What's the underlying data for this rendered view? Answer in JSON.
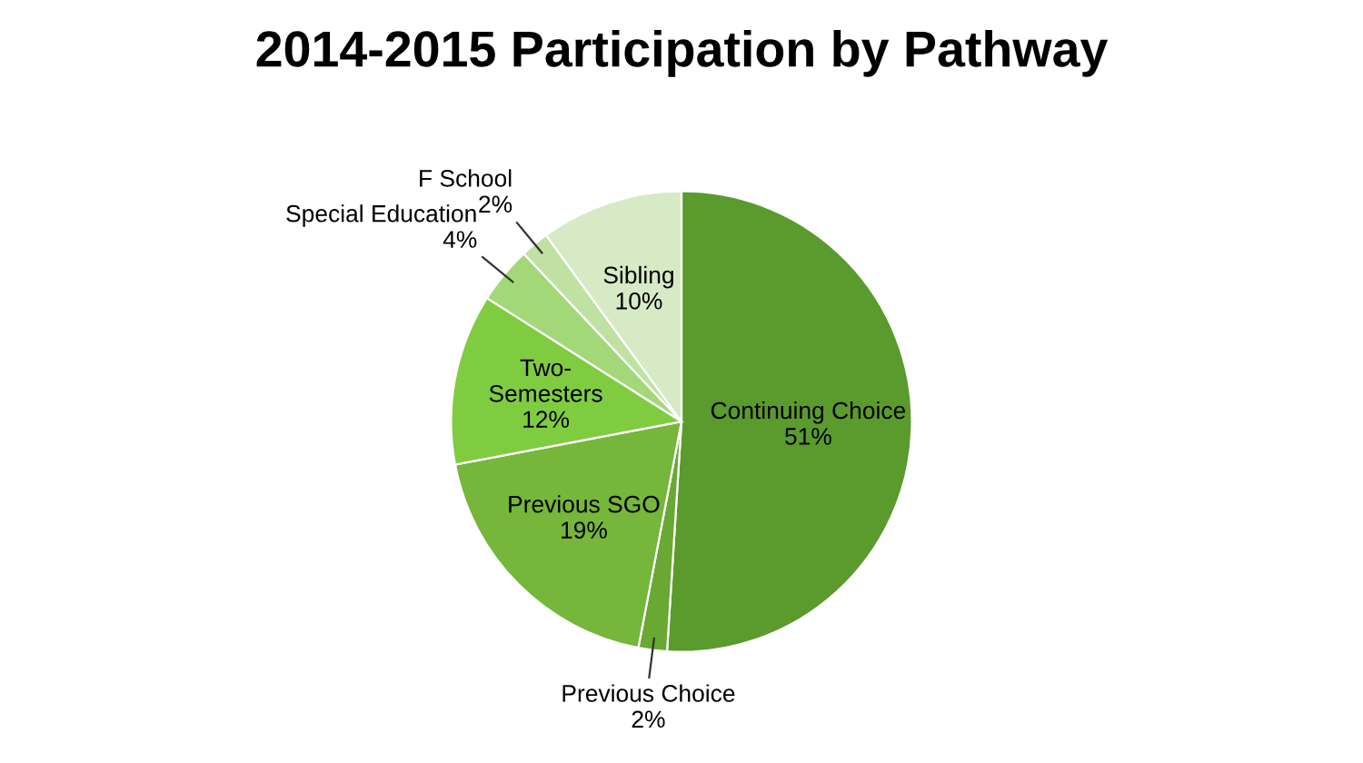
{
  "chart_data": {
    "type": "pie",
    "title": "2014-2015 Participation by Pathway",
    "categories": [
      "Continuing Choice",
      "Previous Choice",
      "Previous SGO",
      "Two-Semesters",
      "Special Education",
      "F School",
      "Sibling"
    ],
    "values": [
      51,
      2,
      19,
      12,
      4,
      2,
      10
    ],
    "value_labels": [
      "51%",
      "2%",
      "19%",
      "12%",
      "4%",
      "2%",
      "10%"
    ],
    "colors": [
      "#5b9a2d",
      "#69a833",
      "#76b63a",
      "#80cc40",
      "#a3d878",
      "#bfe2a3",
      "#d6eac6"
    ]
  }
}
